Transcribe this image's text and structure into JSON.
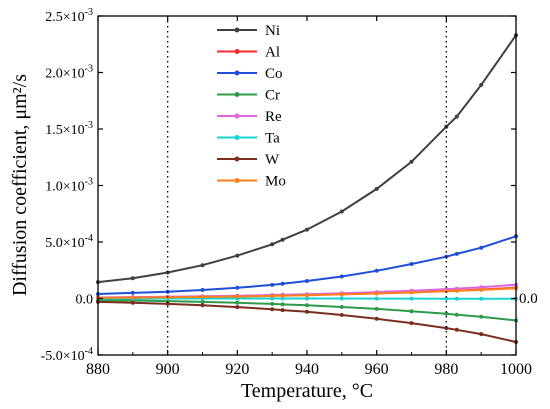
{
  "chart_data": {
    "type": "line",
    "title": "",
    "xlabel": "Temperature, °C",
    "ylabel": "Diffusion coefficient, μm²/s",
    "xlim": [
      880,
      1000
    ],
    "ylim": [
      -0.0005,
      0.0025
    ],
    "x_ticks": [
      {
        "value": 880,
        "label": "880"
      },
      {
        "value": 900,
        "label": "900"
      },
      {
        "value": 920,
        "label": "920"
      },
      {
        "value": 940,
        "label": "940"
      },
      {
        "value": 960,
        "label": "960"
      },
      {
        "value": 980,
        "label": "980"
      },
      {
        "value": 1000,
        "label": "1000"
      }
    ],
    "y_ticks": [
      {
        "value": -0.0005,
        "mantissa": "-5.0×10",
        "exp": "-4"
      },
      {
        "value": 0,
        "mantissa": "0.0",
        "exp": ""
      },
      {
        "value": 0.0005,
        "mantissa": "5.0×10",
        "exp": "-4"
      },
      {
        "value": 0.001,
        "mantissa": "1.0×10",
        "exp": "-3"
      },
      {
        "value": 0.0015,
        "mantissa": "1.5×10",
        "exp": "-3"
      },
      {
        "value": 0.002,
        "mantissa": "2.0×10",
        "exp": "-3"
      },
      {
        "value": 0.0025,
        "mantissa": "2.5×10",
        "exp": "-3"
      }
    ],
    "reference_lines_x": [
      900,
      980
    ],
    "right_annotation": "0.0",
    "legend_position": "top-center",
    "grid": false,
    "x": [
      880,
      890,
      900,
      910,
      920,
      930,
      933,
      940,
      950,
      960,
      970,
      980,
      983,
      990,
      1000
    ],
    "series": [
      {
        "name": "Ni",
        "color": "#404040",
        "values": [
          0.000145,
          0.00018,
          0.00023,
          0.000295,
          0.00038,
          0.00048,
          0.00052,
          0.00061,
          0.00077,
          0.00097,
          0.00121,
          0.00152,
          0.00161,
          0.00189,
          0.00233
        ]
      },
      {
        "name": "Al",
        "color": "#ff2a2a",
        "values": [
          8e-06,
          1e-05,
          1.3e-05,
          1.7e-05,
          2.1e-05,
          2.6e-05,
          2.8e-05,
          3.2e-05,
          3.9e-05,
          4.7e-05,
          5.6e-05,
          6.7e-05,
          7e-05,
          8e-05,
          9.5e-05
        ]
      },
      {
        "name": "Co",
        "color": "#1f4fd8",
        "values": [
          4e-05,
          5e-05,
          6e-05,
          7.5e-05,
          9.5e-05,
          0.00012,
          0.00013,
          0.000155,
          0.000195,
          0.000245,
          0.000305,
          0.00037,
          0.000395,
          0.00045,
          0.00055
        ]
      },
      {
        "name": "Cr",
        "color": "#2e9b4a",
        "values": [
          -1.4e-05,
          -1.8e-05,
          -2.3e-05,
          -3e-05,
          -3.8e-05,
          -4.8e-05,
          -5.2e-05,
          -6e-05,
          -7.5e-05,
          -9.2e-05,
          -0.000112,
          -0.000135,
          -0.000143,
          -0.000162,
          -0.000195
        ]
      },
      {
        "name": "Re",
        "color": "#dd66dd",
        "values": [
          9e-06,
          1.2e-05,
          1.5e-05,
          2e-05,
          2.5e-05,
          3.1e-05,
          3.3e-05,
          3.8e-05,
          4.7e-05,
          5.7e-05,
          6.9e-05,
          8.3e-05,
          8.8e-05,
          0.0001,
          0.000122
        ]
      },
      {
        "name": "Ta",
        "color": "#19d3d3",
        "values": [
          0.0,
          0.0,
          0.0,
          0.0,
          0.0,
          0.0,
          0.0,
          0.0,
          0.0,
          -1e-06,
          -1e-06,
          -2e-06,
          -2e-06,
          -2e-06,
          -3e-06
        ]
      },
      {
        "name": "W",
        "color": "#7a2e1e",
        "values": [
          -3e-05,
          -3.8e-05,
          -4.8e-05,
          -6e-05,
          -7.6e-05,
          -9.5e-05,
          -0.000103,
          -0.000118,
          -0.000146,
          -0.00018,
          -0.000218,
          -0.000262,
          -0.000277,
          -0.000315,
          -0.000385
        ]
      },
      {
        "name": "Mo",
        "color": "#ff7f1a",
        "values": [
          6e-06,
          8e-06,
          1.1e-05,
          1.4e-05,
          1.8e-05,
          2.3e-05,
          2.5e-05,
          2.9e-05,
          3.6e-05,
          4.4e-05,
          5.3e-05,
          6.4e-05,
          6.7e-05,
          7.6e-05,
          9e-05
        ]
      }
    ]
  }
}
